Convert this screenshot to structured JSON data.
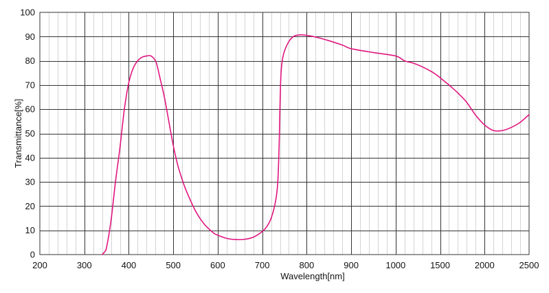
{
  "chart_data": {
    "type": "line",
    "xlabel": "Wavelength[nm]",
    "ylabel": "Transmittance[%]",
    "x_tick_labels": [
      "200",
      "300",
      "400",
      "500",
      "600",
      "700",
      "800",
      "900",
      "1000",
      "1500",
      "2000",
      "2500"
    ],
    "y_tick_labels": [
      "0",
      "10",
      "20",
      "30",
      "40",
      "50",
      "60",
      "70",
      "80",
      "90",
      "100"
    ],
    "ylim": [
      0,
      100
    ],
    "x_axis_note": "piecewise scale: 200-1000 nm at 100 nm per major division, then 1000-2500 nm at 500 nm per major division",
    "grid": true,
    "minor_gridlines": true,
    "line_color": "#e0157f",
    "series": [
      {
        "x": [
          340,
          345,
          350,
          360,
          370,
          380,
          390,
          400,
          410,
          420,
          430,
          440,
          450,
          460,
          465,
          470,
          480,
          490,
          500,
          510,
          520,
          530,
          550,
          570,
          590,
          600,
          620,
          640,
          660,
          680,
          700,
          710,
          720,
          730,
          735,
          738,
          740,
          742,
          745,
          750,
          760,
          770,
          780,
          790,
          800,
          820,
          850,
          880,
          900,
          950,
          1000,
          1100,
          1200,
          1300,
          1400,
          1450,
          1500,
          1550,
          1600,
          1650,
          1700,
          1800,
          1900,
          2000,
          2100,
          2200,
          2300,
          2400,
          2500
        ],
        "y": [
          0,
          1,
          3,
          14,
          30,
          44,
          60,
          71,
          77,
          80,
          81.5,
          82,
          82,
          80,
          77,
          73,
          65,
          55,
          45,
          37,
          31,
          26,
          18,
          12.5,
          9,
          8,
          6.7,
          6.2,
          6.3,
          7.2,
          9.5,
          11.5,
          15,
          22,
          30,
          45,
          62,
          74,
          80,
          84,
          88,
          90,
          90.6,
          90.7,
          90.5,
          89.8,
          88.3,
          86.5,
          85,
          83.4,
          82,
          80,
          79,
          77.5,
          75.6,
          74.4,
          73,
          71.5,
          70,
          68.4,
          66.7,
          62.8,
          57.5,
          53.5,
          51.2,
          51.2,
          52.5,
          54.6,
          57.8
        ]
      }
    ]
  }
}
